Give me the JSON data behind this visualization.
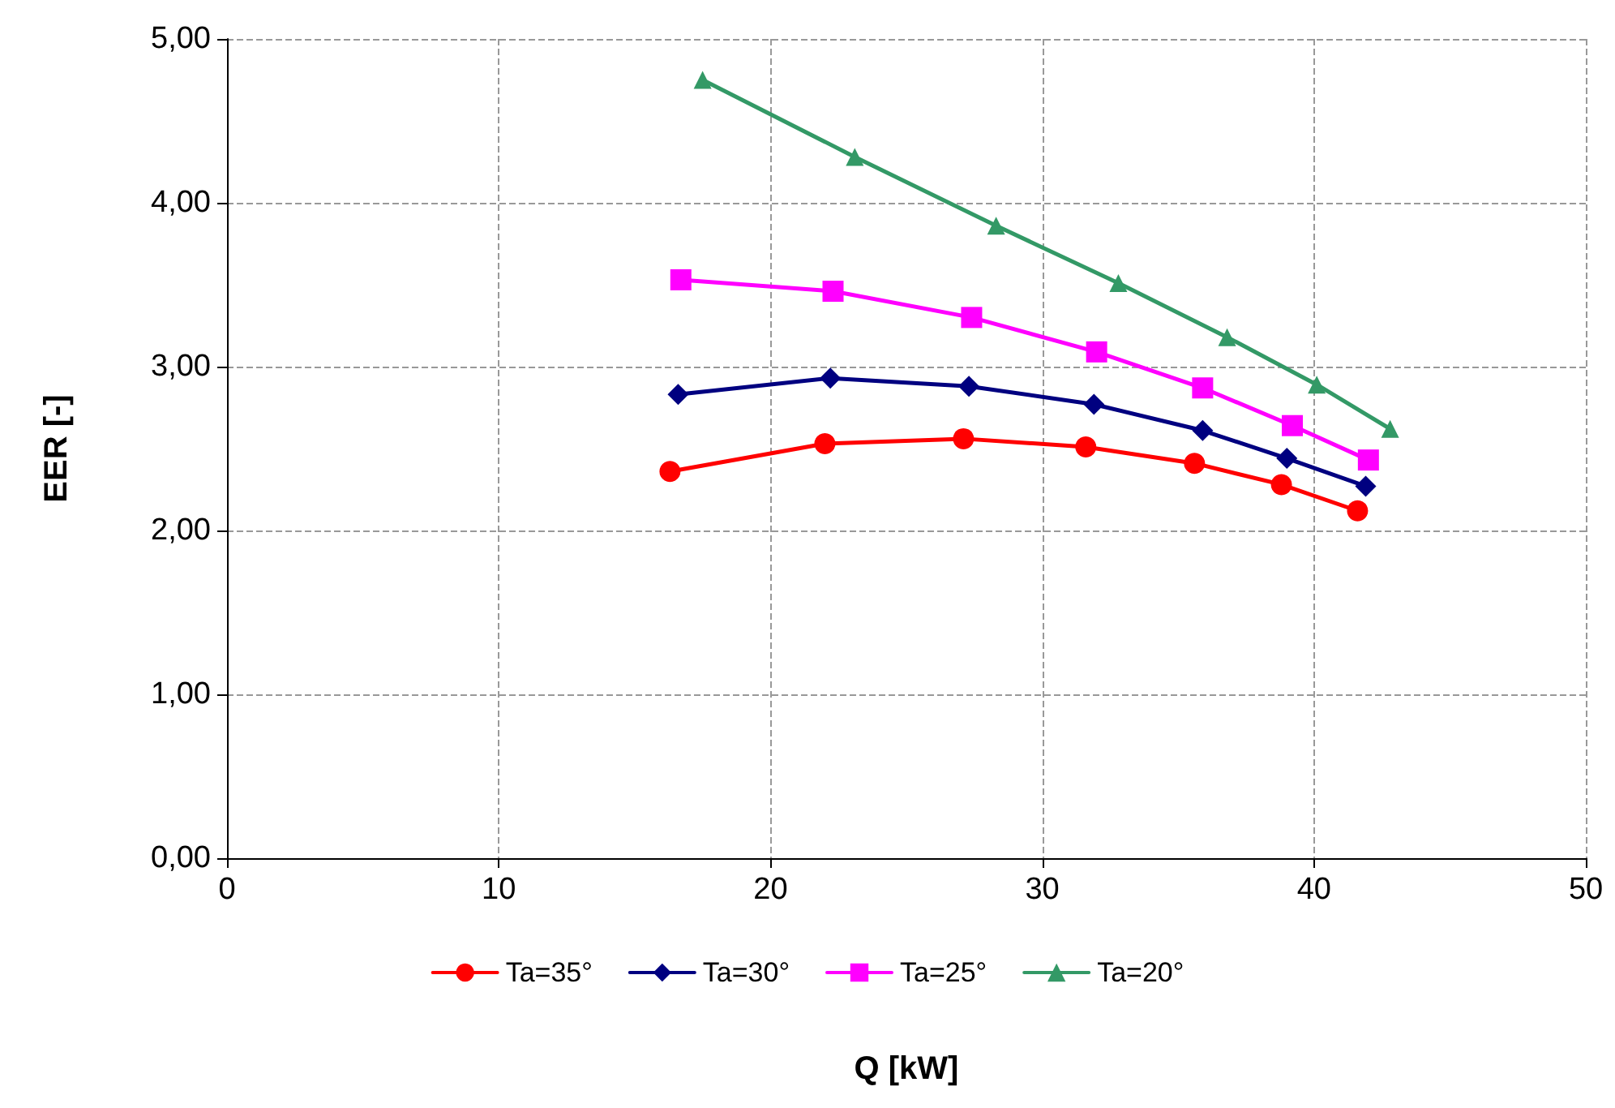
{
  "chart_data": {
    "type": "line",
    "xlabel": "Q [kW]",
    "ylabel": "EER [-]",
    "xlim": [
      0,
      50
    ],
    "xticks": [
      0,
      10,
      20,
      30,
      40,
      50
    ],
    "ylim": [
      0,
      5
    ],
    "yticks": [
      {
        "value": 0,
        "label": "0,00"
      },
      {
        "value": 1,
        "label": "1,00"
      },
      {
        "value": 2,
        "label": "2,00"
      },
      {
        "value": 3,
        "label": "3,00"
      },
      {
        "value": 4,
        "label": "4,00"
      },
      {
        "value": 5,
        "label": "5,00"
      }
    ],
    "grid": true,
    "legend": "bottom",
    "line_style": "solid",
    "series": [
      {
        "name": "Ta=35°",
        "color": "#ff0000",
        "marker": "circle",
        "x": [
          16.3,
          22.0,
          27.1,
          31.6,
          35.6,
          38.8,
          41.6
        ],
        "values": [
          2.36,
          2.53,
          2.56,
          2.51,
          2.41,
          2.28,
          2.12
        ]
      },
      {
        "name": "Ta=30°",
        "color": "#000080",
        "marker": "diamond",
        "x": [
          16.6,
          22.2,
          27.3,
          31.9,
          35.9,
          39.0,
          41.9
        ],
        "values": [
          2.83,
          2.93,
          2.88,
          2.77,
          2.61,
          2.44,
          2.27
        ]
      },
      {
        "name": "Ta=25°",
        "color": "#ff00ff",
        "marker": "square",
        "x": [
          16.7,
          22.3,
          27.4,
          32.0,
          35.9,
          39.2,
          42.0
        ],
        "values": [
          3.53,
          3.46,
          3.3,
          3.09,
          2.87,
          2.64,
          2.43
        ]
      },
      {
        "name": "Ta=20°",
        "color": "#339966",
        "marker": "triangle",
        "x": [
          17.5,
          23.1,
          28.3,
          32.8,
          36.8,
          40.1,
          42.8
        ],
        "values": [
          4.75,
          4.28,
          3.86,
          3.51,
          3.18,
          2.89,
          2.62
        ]
      }
    ]
  }
}
